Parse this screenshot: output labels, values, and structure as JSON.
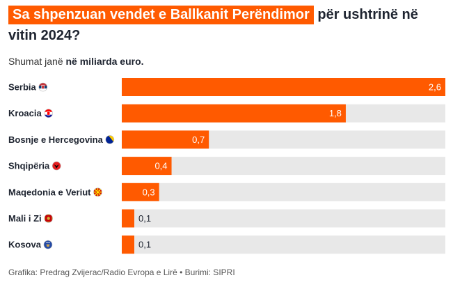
{
  "title_highlight": "Sa shpenzuan vendet e Ballkanit Perëndimor",
  "title_rest": "për ushtrinë në vitin 2024?",
  "subtitle_prefix": "Shumat janë",
  "subtitle_bold": "në miliarda euro.",
  "footer": "Grafika: Predrag Zvijerac/Radio Evropa e Lirë • Burimi: SIPRI",
  "colors": {
    "bar": "#ff5a00",
    "track": "#e8e8e8",
    "highlight": "#ff5a00"
  },
  "chart_data": {
    "type": "bar",
    "orientation": "horizontal",
    "categories": [
      "Serbia",
      "Kroacia",
      "Bosnje e Hercegovina",
      "Shqipëria",
      "Maqedonia e Veriut",
      "Mali i Zi",
      "Kosova"
    ],
    "values": [
      2.6,
      1.8,
      0.7,
      0.4,
      0.3,
      0.1,
      0.1
    ],
    "value_labels": [
      "2,6",
      "1,8",
      "0,7",
      "0,4",
      "0,3",
      "0,1",
      "0,1"
    ],
    "flag_icons": [
      "serbia-flag-icon",
      "croatia-flag-icon",
      "bosnia-flag-icon",
      "albania-flag-icon",
      "north-macedonia-flag-icon",
      "montenegro-flag-icon",
      "kosovo-flag-icon"
    ],
    "xlim": [
      0,
      2.6
    ]
  }
}
